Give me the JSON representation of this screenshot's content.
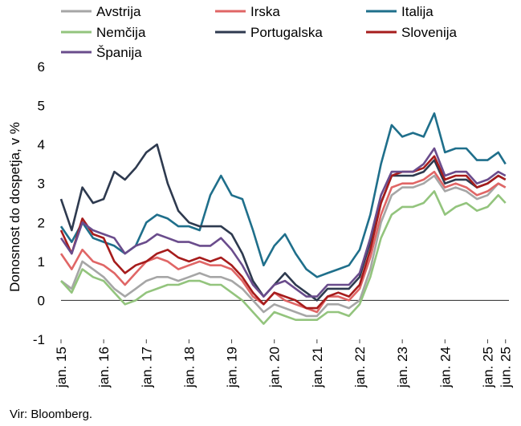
{
  "chart_data": {
    "type": "line",
    "ylabel": "Donosnost do dospetja, v %",
    "ylim": [
      -1,
      6
    ],
    "yticks": [
      -1,
      0,
      1,
      2,
      3,
      4,
      5,
      6
    ],
    "xlim": [
      2015.0,
      2025.5
    ],
    "xticks": [
      {
        "x": 2015.0,
        "label": "jan. 15"
      },
      {
        "x": 2016.0,
        "label": "jan. 16"
      },
      {
        "x": 2017.0,
        "label": "jan. 17"
      },
      {
        "x": 2018.0,
        "label": "jan. 18"
      },
      {
        "x": 2019.0,
        "label": "jan. 19"
      },
      {
        "x": 2020.0,
        "label": "jan. 20"
      },
      {
        "x": 2021.0,
        "label": "jan. 21"
      },
      {
        "x": 2022.0,
        "label": "jan. 22"
      },
      {
        "x": 2023.0,
        "label": "jan. 23"
      },
      {
        "x": 2024.0,
        "label": "jan. 24"
      },
      {
        "x": 2025.0,
        "label": "jan. 25"
      },
      {
        "x": 2025.42,
        "label": "jun. 25"
      }
    ],
    "grid": false,
    "legend": "top",
    "source": "Vir: Bloomberg.",
    "x": [
      2015.0,
      2015.25,
      2015.5,
      2015.75,
      2016.0,
      2016.25,
      2016.5,
      2016.75,
      2017.0,
      2017.25,
      2017.5,
      2017.75,
      2018.0,
      2018.25,
      2018.5,
      2018.75,
      2019.0,
      2019.25,
      2019.5,
      2019.75,
      2020.0,
      2020.25,
      2020.5,
      2020.75,
      2021.0,
      2021.25,
      2021.5,
      2021.75,
      2022.0,
      2022.25,
      2022.5,
      2022.75,
      2023.0,
      2023.25,
      2023.5,
      2023.75,
      2024.0,
      2024.25,
      2024.5,
      2024.75,
      2025.0,
      2025.25,
      2025.42
    ],
    "series": [
      {
        "name": "Avstrija",
        "color": "#a6a6a6",
        "values": [
          0.5,
          0.3,
          1.0,
          0.8,
          0.6,
          0.3,
          0.1,
          0.3,
          0.5,
          0.6,
          0.6,
          0.5,
          0.6,
          0.7,
          0.6,
          0.6,
          0.5,
          0.3,
          0.0,
          -0.3,
          -0.1,
          -0.2,
          -0.3,
          -0.4,
          -0.4,
          -0.1,
          -0.1,
          -0.2,
          0.0,
          0.8,
          2.0,
          2.7,
          2.9,
          2.9,
          3.0,
          3.2,
          2.8,
          2.9,
          2.8,
          2.6,
          2.7,
          3.0,
          2.9
        ]
      },
      {
        "name": "Irska",
        "color": "#e06666",
        "values": [
          1.2,
          0.8,
          1.3,
          1.0,
          0.9,
          0.7,
          0.4,
          0.7,
          1.0,
          1.1,
          1.0,
          0.8,
          0.9,
          1.0,
          0.9,
          0.9,
          0.8,
          0.5,
          0.1,
          -0.1,
          0.2,
          0.0,
          -0.1,
          -0.2,
          -0.3,
          0.1,
          0.1,
          0.0,
          0.3,
          1.1,
          2.2,
          2.9,
          3.0,
          3.0,
          3.1,
          3.3,
          2.9,
          3.0,
          2.9,
          2.7,
          2.8,
          3.0,
          2.9
        ]
      },
      {
        "name": "Italija",
        "color": "#1f6f8b",
        "values": [
          1.9,
          1.5,
          2.0,
          1.6,
          1.5,
          1.4,
          1.2,
          1.4,
          2.0,
          2.2,
          2.1,
          1.9,
          1.9,
          1.8,
          2.7,
          3.2,
          2.7,
          2.6,
          1.8,
          0.9,
          1.4,
          1.7,
          1.2,
          0.8,
          0.6,
          0.7,
          0.8,
          0.9,
          1.3,
          2.2,
          3.5,
          4.5,
          4.2,
          4.3,
          4.2,
          4.8,
          3.8,
          3.9,
          3.9,
          3.6,
          3.6,
          3.8,
          3.5
        ]
      },
      {
        "name": "Nemčija",
        "color": "#93c47d",
        "values": [
          0.5,
          0.2,
          0.8,
          0.6,
          0.5,
          0.2,
          -0.1,
          0.0,
          0.2,
          0.3,
          0.4,
          0.4,
          0.5,
          0.5,
          0.4,
          0.4,
          0.2,
          0.0,
          -0.3,
          -0.6,
          -0.3,
          -0.4,
          -0.5,
          -0.5,
          -0.5,
          -0.3,
          -0.3,
          -0.4,
          -0.1,
          0.6,
          1.6,
          2.2,
          2.4,
          2.4,
          2.5,
          2.8,
          2.2,
          2.4,
          2.5,
          2.3,
          2.4,
          2.7,
          2.5
        ]
      },
      {
        "name": "Portugalska",
        "color": "#2e3a4f",
        "values": [
          2.6,
          1.8,
          2.9,
          2.5,
          2.6,
          3.3,
          3.1,
          3.4,
          3.8,
          4.0,
          3.0,
          2.3,
          2.0,
          1.9,
          1.9,
          1.9,
          1.7,
          1.2,
          0.5,
          0.1,
          0.4,
          0.7,
          0.4,
          0.2,
          0.0,
          0.3,
          0.3,
          0.3,
          0.6,
          1.5,
          2.5,
          3.2,
          3.2,
          3.2,
          3.3,
          3.6,
          3.0,
          3.1,
          3.1,
          2.9,
          3.0,
          3.2,
          3.1
        ]
      },
      {
        "name": "Slovenija",
        "color": "#a61c1c",
        "values": [
          1.8,
          1.2,
          2.1,
          1.7,
          1.6,
          1.0,
          0.7,
          0.9,
          1.0,
          1.2,
          1.3,
          1.1,
          1.0,
          1.1,
          1.0,
          1.1,
          0.9,
          0.6,
          0.2,
          -0.1,
          0.2,
          0.1,
          0.0,
          -0.2,
          -0.2,
          0.1,
          0.2,
          0.1,
          0.4,
          1.3,
          2.5,
          3.2,
          3.3,
          3.3,
          3.4,
          3.7,
          3.1,
          3.2,
          3.2,
          2.9,
          3.0,
          3.2,
          3.1
        ]
      },
      {
        "name": "Španija",
        "color": "#6a4c8c",
        "values": [
          1.6,
          1.2,
          2.0,
          1.8,
          1.7,
          1.6,
          1.2,
          1.4,
          1.5,
          1.7,
          1.6,
          1.5,
          1.5,
          1.4,
          1.4,
          1.6,
          1.3,
          0.9,
          0.4,
          0.1,
          0.4,
          0.5,
          0.3,
          0.1,
          0.1,
          0.4,
          0.4,
          0.4,
          0.7,
          1.6,
          2.7,
          3.3,
          3.3,
          3.3,
          3.5,
          3.9,
          3.2,
          3.3,
          3.3,
          3.0,
          3.1,
          3.3,
          3.2
        ]
      }
    ]
  }
}
